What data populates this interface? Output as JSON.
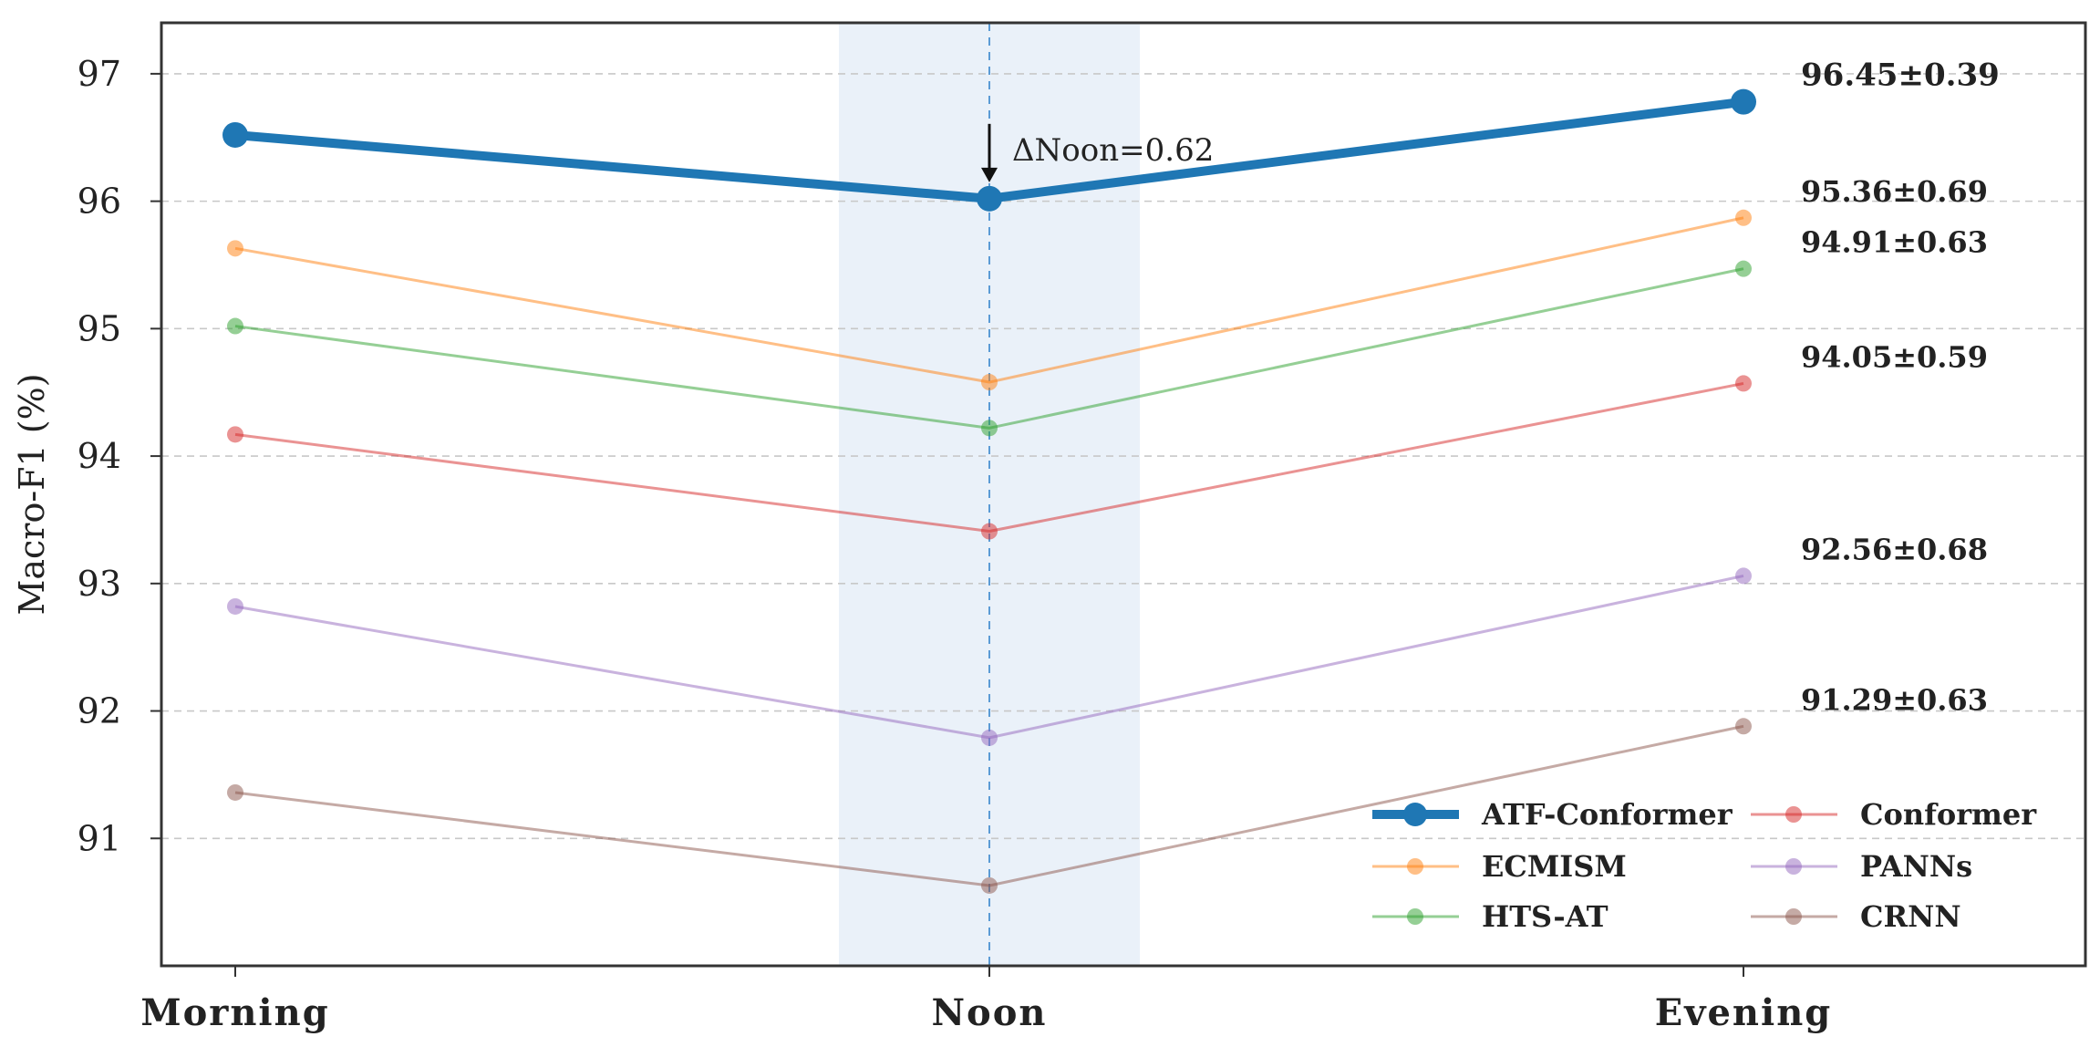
{
  "chart_data": {
    "type": "line",
    "xlabel": "",
    "ylabel": "Macro-F1 (%)",
    "categories": [
      "Morning",
      "Noon",
      "Evening"
    ],
    "ylim": [
      90.0,
      97.4
    ],
    "yticks": [
      91,
      92,
      93,
      94,
      95,
      96,
      97
    ],
    "grid": "horizontal-dashed",
    "legend_position": "lower-right",
    "highlight_category": "Noon",
    "annotation": "ΔNoon=0.62",
    "series": [
      {
        "name": "ATF-Conformer",
        "values": [
          96.52,
          96.02,
          96.78
        ],
        "color": "#1f77b4",
        "emphasis": true,
        "end_label": "96.45±0.39"
      },
      {
        "name": "ECMISM",
        "values": [
          95.63,
          94.58,
          95.87
        ],
        "color": "#ff7f0e",
        "emphasis": false,
        "end_label": "95.36±0.69"
      },
      {
        "name": "HTS-AT",
        "values": [
          95.02,
          94.22,
          95.47
        ],
        "color": "#2ca02c",
        "emphasis": false,
        "end_label": "94.91±0.63"
      },
      {
        "name": "Conformer",
        "values": [
          94.17,
          93.41,
          94.57
        ],
        "color": "#d62728",
        "emphasis": false,
        "end_label": "94.05±0.59"
      },
      {
        "name": "PANNs",
        "values": [
          92.82,
          91.79,
          93.06
        ],
        "color": "#9467bd",
        "emphasis": false,
        "end_label": "92.56±0.68"
      },
      {
        "name": "CRNN",
        "values": [
          91.36,
          90.63,
          91.88
        ],
        "color": "#8c564b",
        "emphasis": false,
        "end_label": "91.29±0.63"
      }
    ]
  }
}
